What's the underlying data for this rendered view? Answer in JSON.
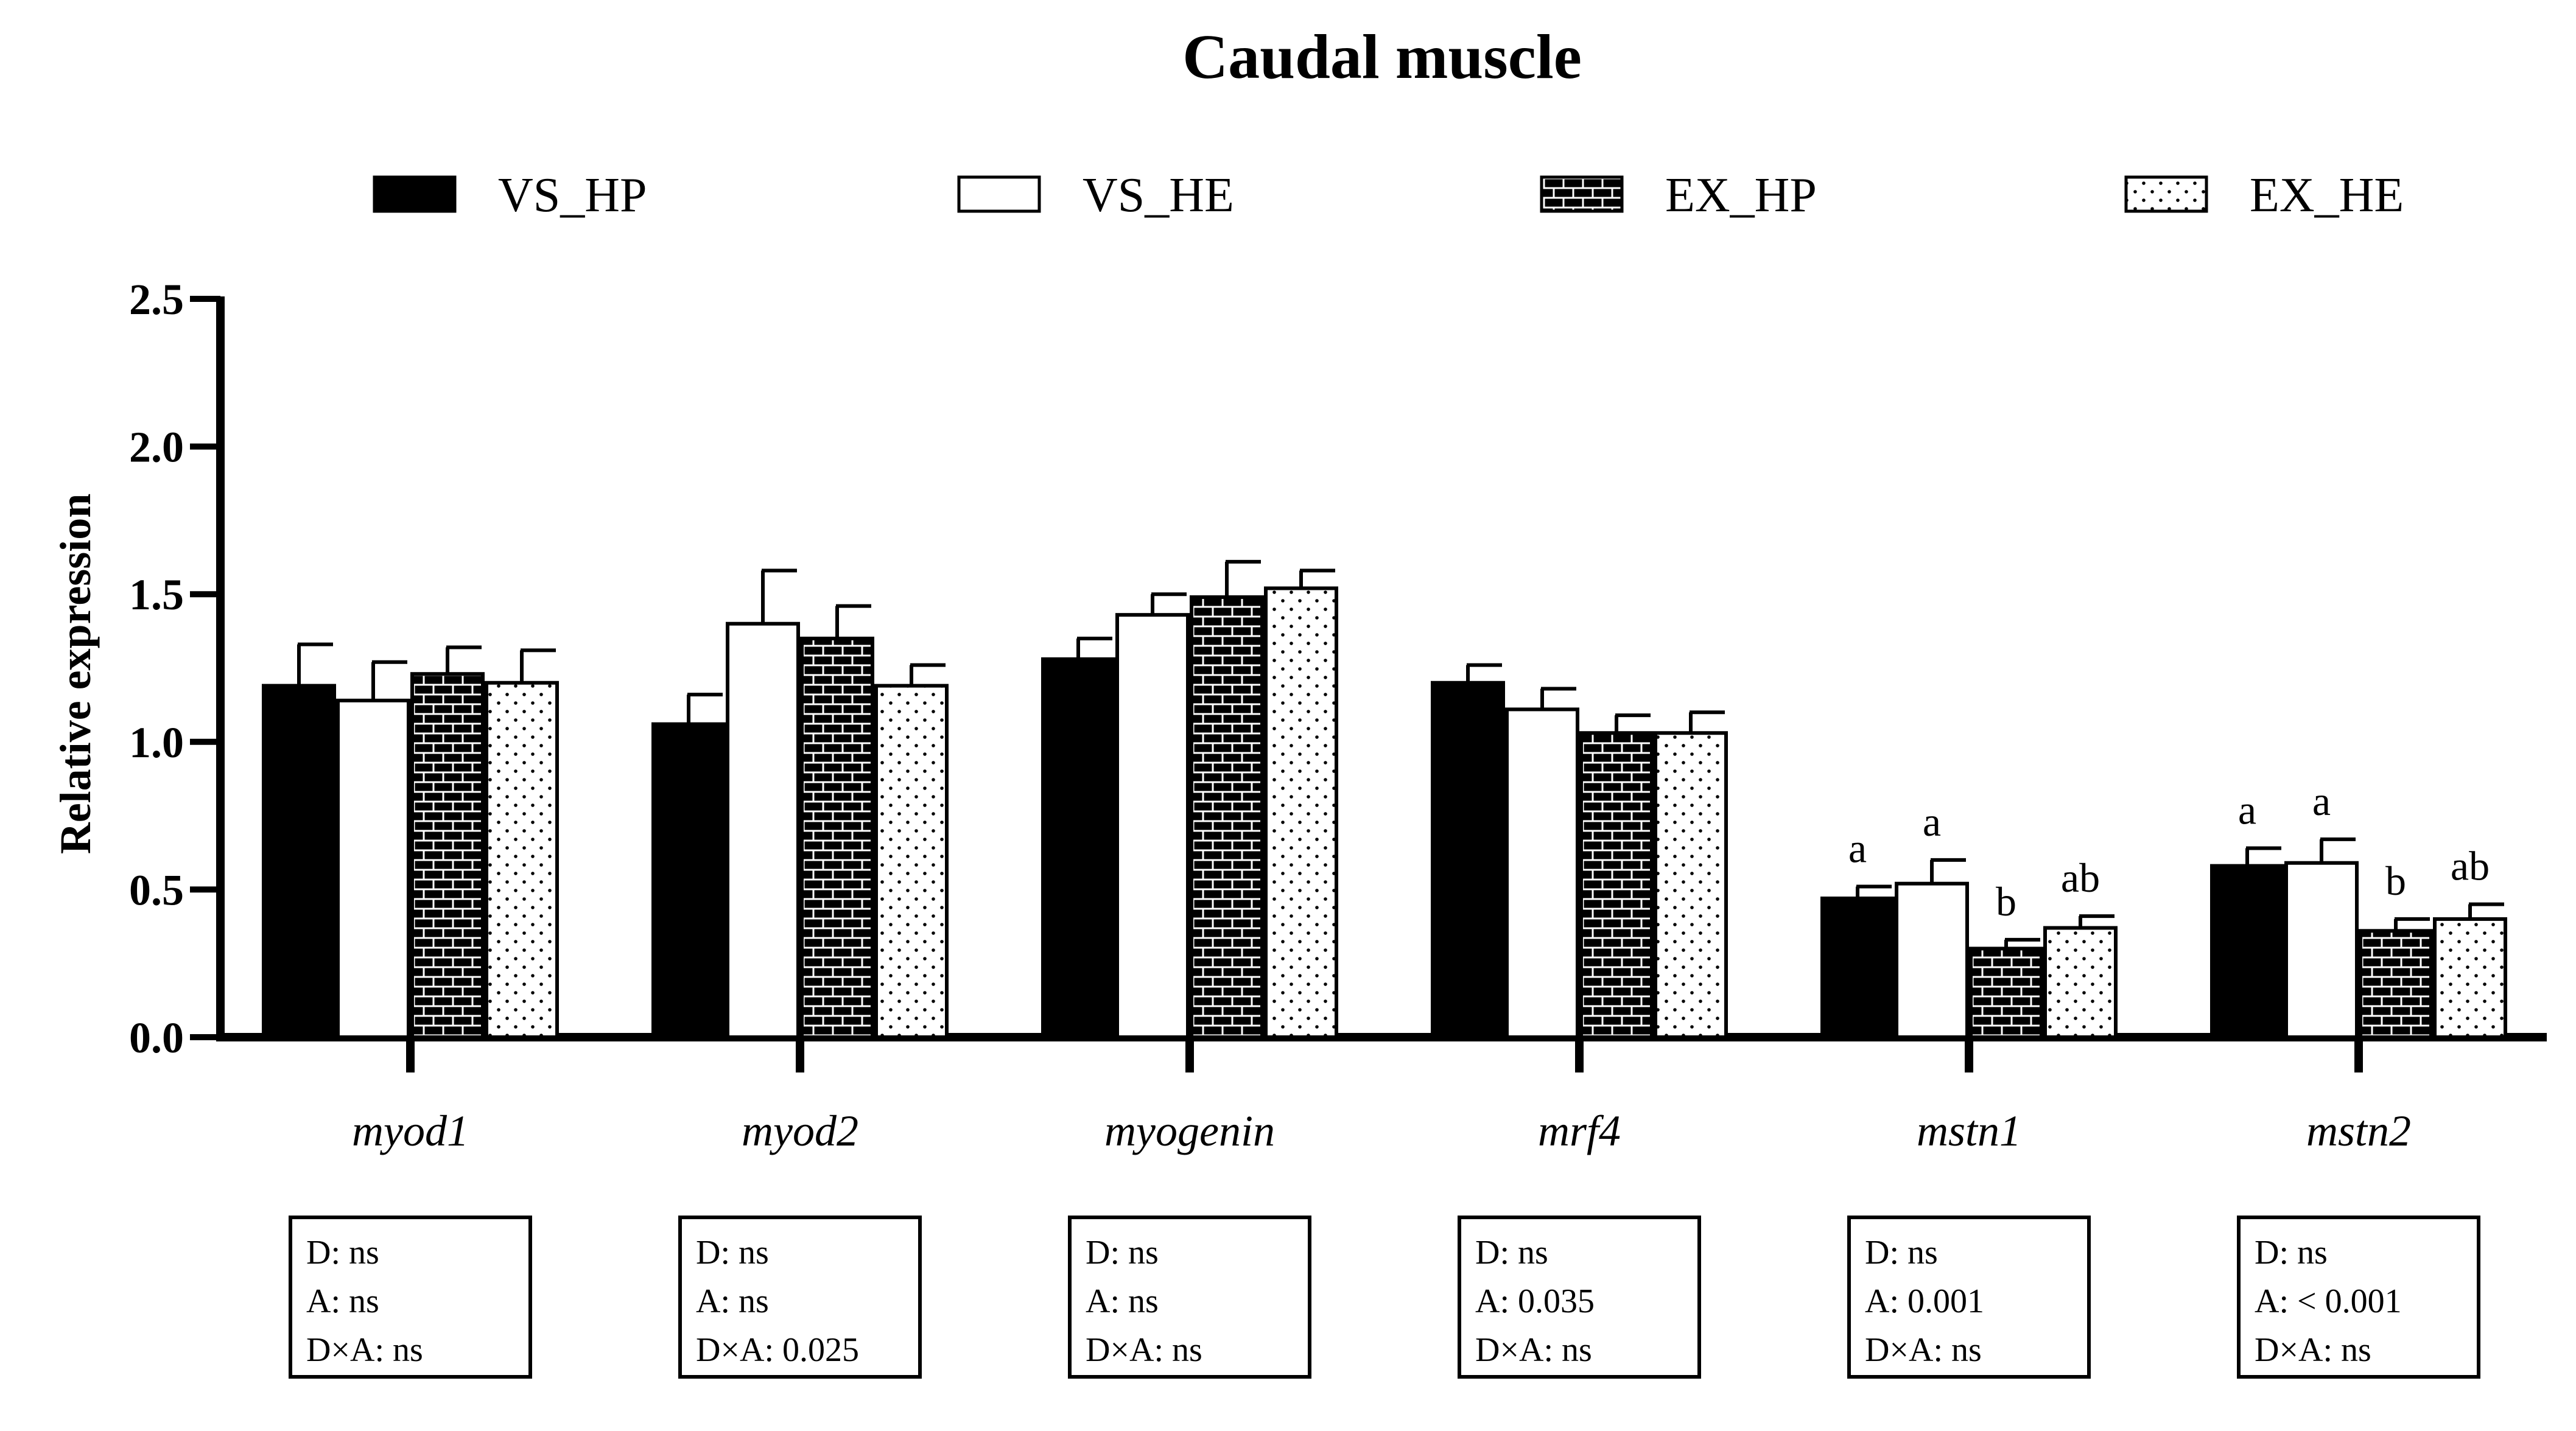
{
  "chart_data": {
    "type": "bar",
    "title": "Caudal muscle",
    "ylabel": "Relative expression",
    "xlabel": "",
    "ylim": [
      0,
      2.5
    ],
    "yticks": [
      "0.0",
      "0.5",
      "1.0",
      "1.5",
      "2.0",
      "2.5"
    ],
    "yticks_values": [
      0,
      0.5,
      1.0,
      1.5,
      2.0,
      2.5
    ],
    "legend_position": "top",
    "categories": [
      "myod1",
      "myod2",
      "myogenin",
      "mrf4",
      "mstn1",
      "mstn2"
    ],
    "series": [
      {
        "name": "VS_HP",
        "pattern": "solid",
        "values": [
          1.19,
          1.06,
          1.28,
          1.2,
          0.47,
          0.58
        ],
        "errors": [
          0.14,
          0.1,
          0.07,
          0.06,
          0.04,
          0.06
        ],
        "letters": [
          "",
          "",
          "",
          "",
          "a",
          "a"
        ]
      },
      {
        "name": "VS_HE",
        "pattern": "white",
        "values": [
          1.14,
          1.4,
          1.43,
          1.11,
          0.52,
          0.59
        ],
        "errors": [
          0.13,
          0.18,
          0.07,
          0.07,
          0.08,
          0.08
        ],
        "letters": [
          "",
          "",
          "",
          "",
          "a",
          "a"
        ]
      },
      {
        "name": "EX_HP",
        "pattern": "brick",
        "values": [
          1.23,
          1.35,
          1.49,
          1.03,
          0.3,
          0.36
        ],
        "errors": [
          0.09,
          0.11,
          0.12,
          0.06,
          0.03,
          0.04
        ],
        "letters": [
          "",
          "",
          "",
          "",
          "b",
          "b"
        ]
      },
      {
        "name": "EX_HE",
        "pattern": "dots",
        "values": [
          1.2,
          1.19,
          1.52,
          1.03,
          0.37,
          0.4
        ],
        "errors": [
          0.11,
          0.07,
          0.06,
          0.07,
          0.04,
          0.05
        ],
        "letters": [
          "",
          "",
          "",
          "",
          "ab",
          "ab"
        ]
      }
    ],
    "stat_boxes": [
      {
        "category": "myod1",
        "lines": [
          "D: ns",
          "A: ns",
          "D×A: ns"
        ]
      },
      {
        "category": "myod2",
        "lines": [
          "D: ns",
          "A: ns",
          "D×A: 0.025"
        ]
      },
      {
        "category": "myogenin",
        "lines": [
          "D: ns",
          "A: ns",
          "D×A: ns"
        ]
      },
      {
        "category": "mrf4",
        "lines": [
          "D: ns",
          "A: 0.035",
          "D×A: ns"
        ]
      },
      {
        "category": "mstn1",
        "lines": [
          "D: ns",
          "A: 0.001",
          "D×A: ns"
        ]
      },
      {
        "category": "mstn2",
        "lines": [
          "D: ns",
          "A: < 0.001",
          "D×A: ns"
        ]
      }
    ]
  }
}
